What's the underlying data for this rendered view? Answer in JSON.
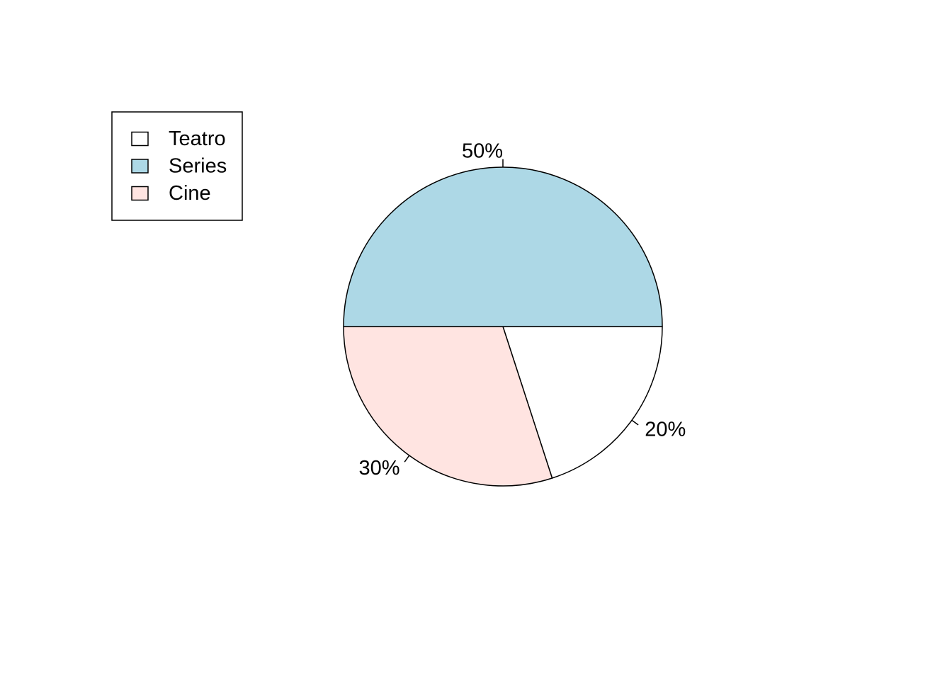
{
  "chart_data": {
    "type": "pie",
    "title": "",
    "slices": [
      {
        "name": "Teatro",
        "value": 20,
        "label": "20%",
        "color": "#FFFFFF"
      },
      {
        "name": "Cine",
        "value": 30,
        "label": "30%",
        "color": "#FFE4E1"
      },
      {
        "name": "Series",
        "value": 50,
        "label": "50%",
        "color": "#ADD8E6"
      }
    ],
    "start_angle_deg": 0,
    "direction": "clockwise",
    "legend": {
      "position": "top-left",
      "items": [
        {
          "label": "Teatro",
          "color": "#FFFFFF"
        },
        {
          "label": "Series",
          "color": "#ADD8E6"
        },
        {
          "label": "Cine",
          "color": "#FFE4E1"
        }
      ]
    },
    "border_color": "#000000"
  }
}
